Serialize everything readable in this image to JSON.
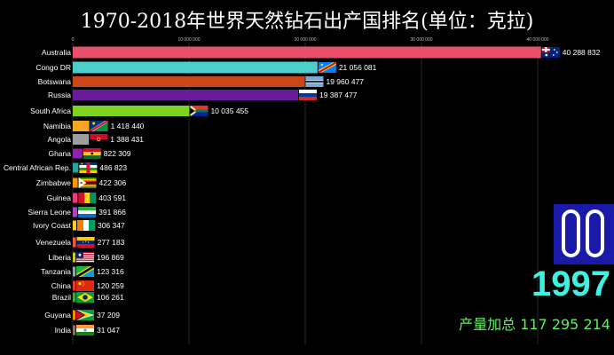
{
  "title": "1970-2018年世界天然钻石出产国排名(单位：克拉)",
  "year": "1997",
  "total_label": "产量加总 117 295 214",
  "colors": {
    "year": "#3cf3e3",
    "total": "#5cf05c",
    "logo_bg": "#1a1aa8"
  },
  "chart_data": {
    "type": "bar",
    "orientation": "horizontal",
    "title": "1970-2018年世界天然钻石出产国排名(单位：克拉)",
    "xlim": [
      0,
      42000000
    ],
    "x_ticks": [
      0,
      10000000,
      20000000,
      30000000,
      40000000
    ],
    "x_tick_labels": [
      "0",
      "10 000 000",
      "20 000 000",
      "30 000 000",
      "40 000 000"
    ],
    "grid": true,
    "categories": [
      "Australia",
      "Congo DR",
      "Botswana",
      "Russia",
      "South Africa",
      "Namibia",
      "Angola",
      "Ghana",
      "Central African Rep.",
      "Zimbabwe",
      "Guinea",
      "Sierra Leone",
      "Ivory Coast",
      "Venezuela",
      "Liberia",
      "Tanzania",
      "China",
      "Brazil",
      "Guyana",
      "India"
    ],
    "values": [
      40288832,
      21056081,
      19960477,
      19387477,
      10035455,
      1418440,
      1388431,
      822309,
      486823,
      422306,
      403591,
      391866,
      306347,
      277183,
      196869,
      123316,
      120259,
      106261,
      37209,
      31047
    ],
    "value_labels": [
      "40 288 832",
      "21 056 081",
      "19 960 477",
      "19 387 477",
      "10 035 455",
      "1 418 440",
      "1 388 431",
      "822 309",
      "486 823",
      "422 306",
      "403 591",
      "391 866",
      "306 347",
      "277 183",
      "196 869",
      "123 316",
      "120 259",
      "106 261",
      "37 209",
      "31 047"
    ],
    "bar_colors": [
      "#e8506a",
      "#4ecfcc",
      "#c9471a",
      "#6a1b9a",
      "#7ed321",
      "#f5a623",
      "#9e9e9e",
      "#8e24aa",
      "#26a69a",
      "#ff9800",
      "#ec407a",
      "#ab47bc",
      "#ffca28",
      "#ef5350",
      "#c0ca33",
      "#90a4ae",
      "#e53935",
      "#43a047",
      "#fb8c00",
      "#8d6e63"
    ],
    "flags": [
      "australia-flag",
      "congo-dr-flag",
      "botswana-flag",
      "russia-flag",
      "south-africa-flag",
      "namibia-flag",
      "angola-flag",
      "ghana-flag",
      "central-african-rep-flag",
      "zimbabwe-flag",
      "guinea-flag",
      "sierra-leone-flag",
      "ivory-coast-flag",
      "venezuela-flag",
      "liberia-flag",
      "tanzania-flag",
      "china-flag",
      "brazil-flag",
      "guyana-flag",
      "india-flag"
    ]
  }
}
